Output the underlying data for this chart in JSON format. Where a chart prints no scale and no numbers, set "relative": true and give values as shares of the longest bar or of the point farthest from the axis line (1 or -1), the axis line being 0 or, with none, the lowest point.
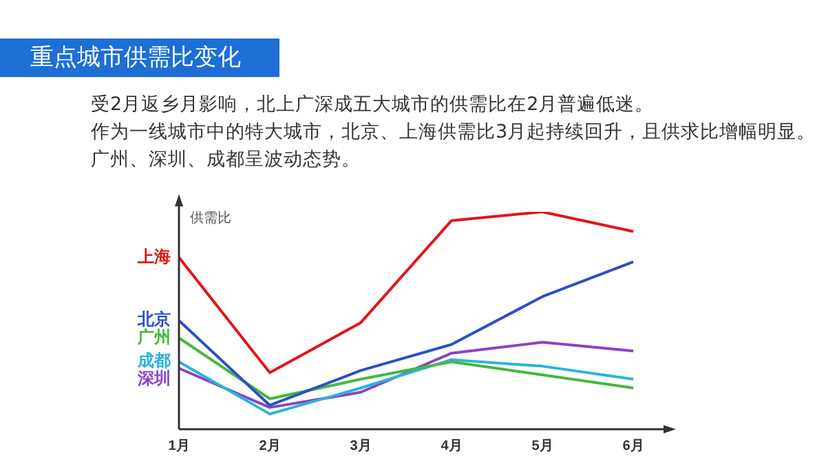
{
  "chart_data": {
    "type": "line",
    "title": "重点城市供需比变化",
    "ylabel": "供需比",
    "relative": true,
    "legend": false,
    "grid": false,
    "marker": "none",
    "annotations": [
      "受2月返乡月影响，北上广深成五大城市的供需比在2月普遍低迷。",
      "作为一线城市中的特大城市，北京、上海供需比3月起持续回升，且供求比增幅明显。",
      "广州、深圳、成都呈波动态势。"
    ],
    "categories": [
      "1月",
      "2月",
      "3月",
      "4月",
      "5月",
      "6月"
    ],
    "series": [
      {
        "name": "上海",
        "color": "#e3141b",
        "values": [
          0.79,
          0.26,
          0.49,
          0.96,
          1.0,
          0.91
        ]
      },
      {
        "name": "北京",
        "color": "#2b4fc6",
        "values": [
          0.5,
          0.11,
          0.27,
          0.39,
          0.61,
          0.77
        ]
      },
      {
        "name": "广州",
        "color": "#44b93c",
        "values": [
          0.42,
          0.14,
          0.23,
          0.31,
          0.25,
          0.19
        ]
      },
      {
        "name": "成都",
        "color": "#2bb3dc",
        "values": [
          0.31,
          0.07,
          0.19,
          0.32,
          0.29,
          0.23
        ]
      },
      {
        "name": "深圳",
        "color": "#8a44c4",
        "values": [
          0.28,
          0.1,
          0.17,
          0.35,
          0.4,
          0.36
        ]
      }
    ]
  }
}
